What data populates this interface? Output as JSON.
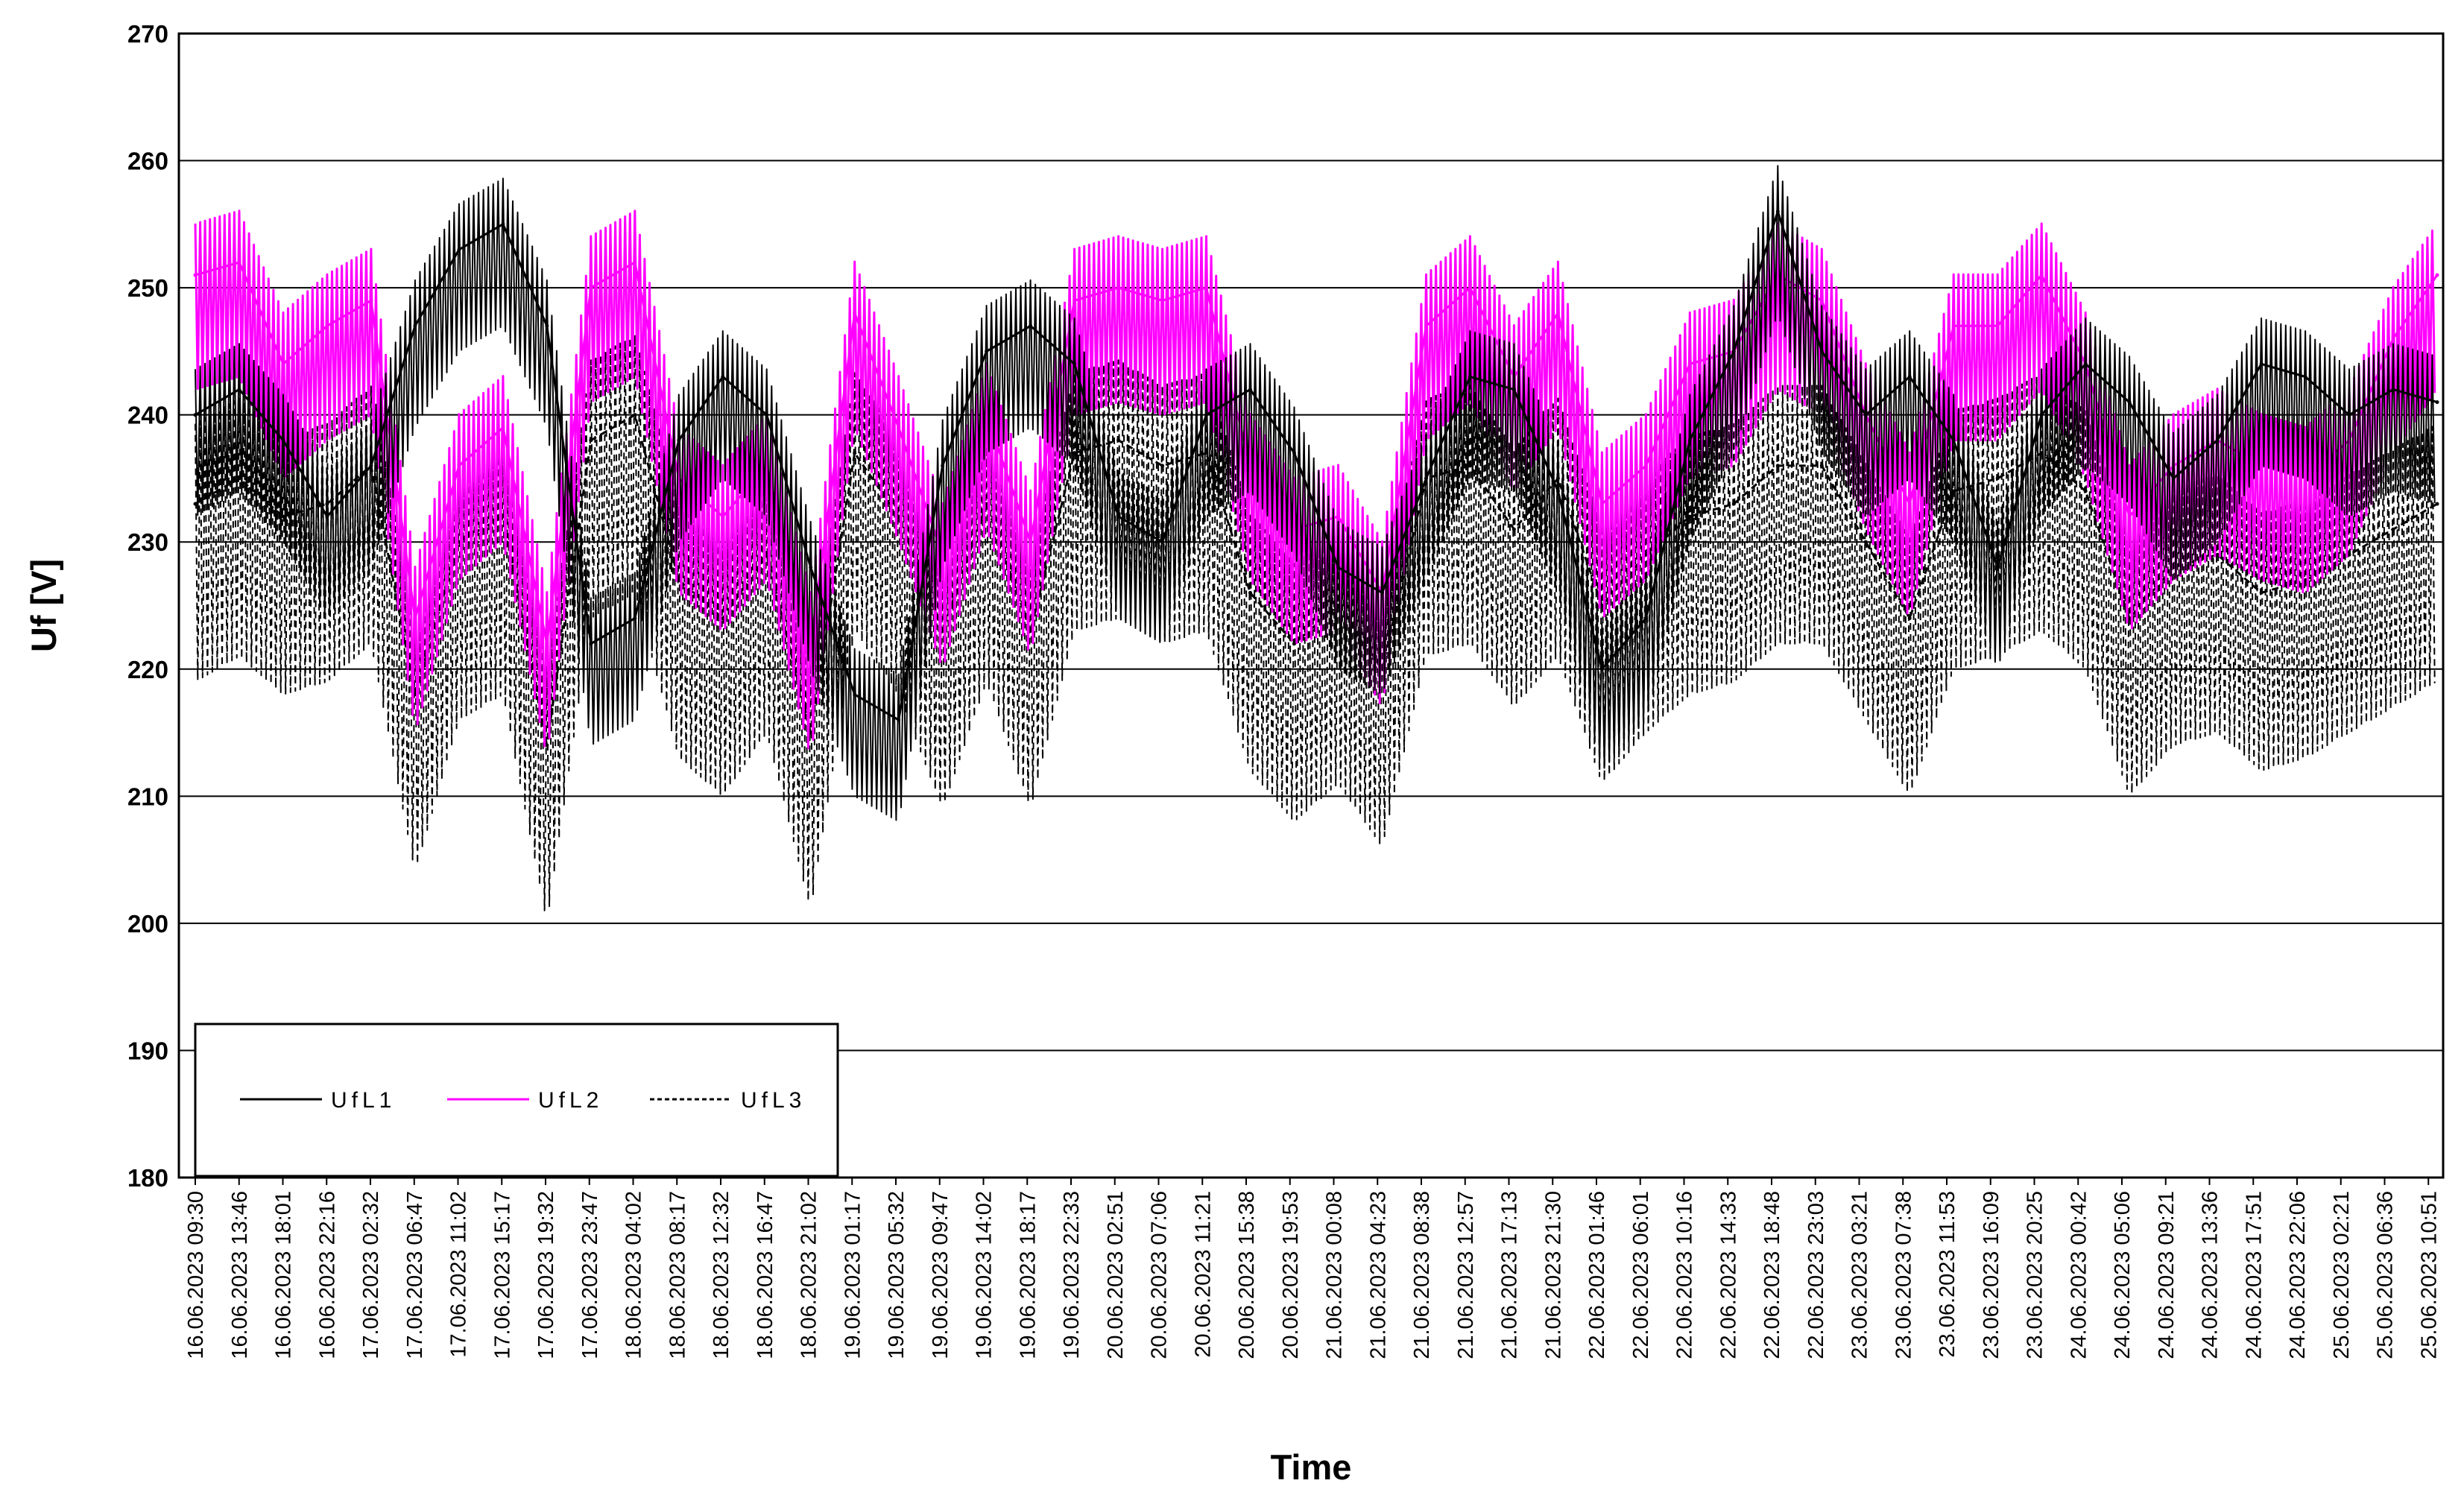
{
  "chart_data": {
    "type": "line",
    "title": "",
    "xlabel": "Time",
    "ylabel": "Uf [V]",
    "ylim": [
      180,
      270
    ],
    "yticks": [
      180,
      190,
      200,
      210,
      220,
      230,
      240,
      250,
      260,
      270
    ],
    "grid": "horizontal",
    "legend_position": "bottom-left",
    "x_tick_labels": [
      "16.06.2023 09:30",
      "16.06.2023 13:46",
      "16.06.2023 18:01",
      "16.06.2023 22:16",
      "17.06.2023 02:32",
      "17.06.2023 06:47",
      "17.06.2023 11:02",
      "17.06.2023 15:17",
      "17.06.2023 19:32",
      "17.06.2023 23:47",
      "18.06.2023 04:02",
      "18.06.2023 08:17",
      "18.06.2023 12:32",
      "18.06.2023 16:47",
      "18.06.2023 21:02",
      "19.06.2023 01:17",
      "19.06.2023 05:32",
      "19.06.2023 09:47",
      "19.06.2023 14:02",
      "19.06.2023 18:17",
      "19.06.2023 22:33",
      "20.06.2023 02:51",
      "20.06.2023 07:06",
      "20.06.2023 11:21",
      "20.06.2023 15:38",
      "20.06.2023 19:53",
      "21.06.2023 00:08",
      "21.06.2023 04:23",
      "21.06.2023 08:38",
      "21.06.2023 12:57",
      "21.06.2023 17:13",
      "21.06.2023 21:30",
      "22.06.2023 01:46",
      "22.06.2023 06:01",
      "22.06.2023 10:16",
      "22.06.2023 14:33",
      "22.06.2023 18:48",
      "22.06.2023 23:03",
      "23.06.2023 03:21",
      "23.06.2023 07:38",
      "23.06.2023 11:53",
      "23.06.2023 16:09",
      "23.06.2023 20:25",
      "24.06.2023 00:42",
      "24.06.2023 05:06",
      "24.06.2023 09:21",
      "24.06.2023 13:36",
      "24.06.2023 17:51",
      "24.06.2023 22:06",
      "25.06.2023 02:21",
      "25.06.2023 06:36",
      "25.06.2023 10:51"
    ],
    "series": [
      {
        "name": "UfL1",
        "color": "#000000",
        "dash": "solid",
        "values": [
          240,
          242,
          238,
          232,
          236,
          247,
          253,
          255,
          247,
          222,
          224,
          238,
          243,
          240,
          228,
          218,
          216,
          236,
          245,
          247,
          244,
          232,
          230,
          240,
          242,
          237,
          228,
          226,
          235,
          243,
          242,
          234,
          220,
          224,
          238,
          245,
          256,
          245,
          240,
          243,
          238,
          228,
          240,
          244,
          241,
          235,
          238,
          244,
          243,
          240,
          242,
          241
        ]
      },
      {
        "name": "UfL2",
        "color": "#ff00ff",
        "dash": "solid",
        "values": [
          251,
          252,
          244,
          247,
          249,
          224,
          236,
          239,
          222,
          250,
          252,
          235,
          232,
          236,
          222,
          248,
          239,
          229,
          240,
          230,
          249,
          250,
          249,
          250,
          236,
          231,
          232,
          226,
          247,
          250,
          243,
          248,
          233,
          236,
          244,
          245,
          251,
          249,
          240,
          233,
          247,
          247,
          251,
          244,
          232,
          236,
          238,
          236,
          235,
          238,
          246,
          251
        ]
      },
      {
        "name": "UfL3",
        "color": "#000000",
        "dash": "dashed",
        "values": [
          233,
          235,
          232,
          233,
          236,
          218,
          230,
          232,
          214,
          238,
          240,
          227,
          224,
          229,
          215,
          237,
          232,
          223,
          233,
          223,
          237,
          238,
          236,
          237,
          226,
          222,
          225,
          220,
          235,
          236,
          231,
          235,
          225,
          229,
          232,
          233,
          236,
          236,
          230,
          224,
          234,
          235,
          237,
          234,
          224,
          228,
          229,
          226,
          227,
          229,
          231,
          233
        ]
      }
    ]
  }
}
